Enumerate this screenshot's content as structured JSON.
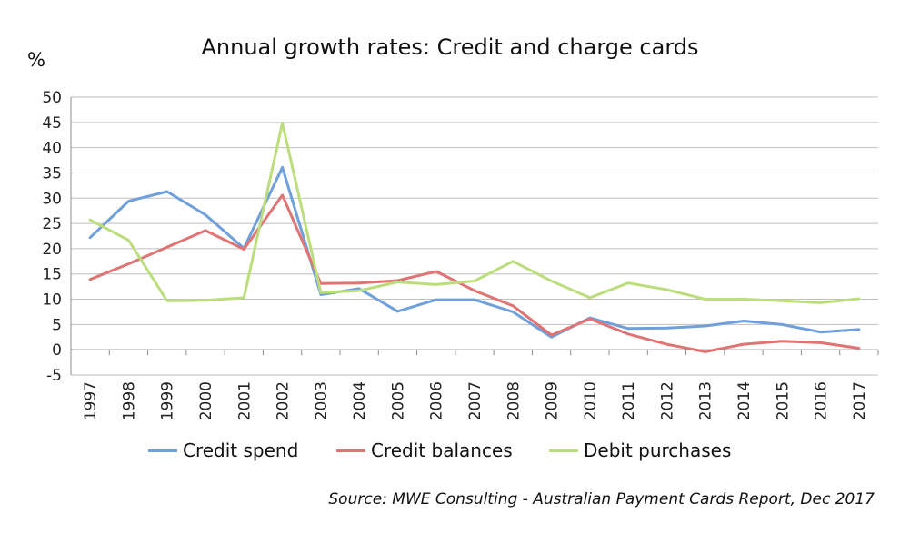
{
  "chart_data": {
    "type": "line",
    "title": "Annual growth rates: Credit and charge cards",
    "ylabel": "%",
    "xlabel": "",
    "ylim": [
      -5,
      50
    ],
    "yticks": [
      "50",
      "45",
      "40",
      "35",
      "30",
      "25",
      "20",
      "15",
      "10",
      "5",
      "0",
      "-5"
    ],
    "grid": true,
    "legend_position": "bottom",
    "categories": [
      "1997",
      "1998",
      "1999",
      "2000",
      "2001",
      "2002",
      "2003",
      "2004",
      "2005",
      "2006",
      "2007",
      "2008",
      "2009",
      "2010",
      "2011",
      "2012",
      "2013",
      "2014",
      "2015",
      "2016",
      "2017"
    ],
    "series": [
      {
        "name": "Credit spend",
        "color": "#6fa0dc",
        "values": [
          22.2,
          29.4,
          31.3,
          26.7,
          20.1,
          36.1,
          10.9,
          12.1,
          7.6,
          9.9,
          9.9,
          7.5,
          2.5,
          6.3,
          4.2,
          4.3,
          4.7,
          5.7,
          5.0,
          3.5,
          4.0
        ]
      },
      {
        "name": "Credit balances",
        "color": "#e07474",
        "values": [
          13.9,
          17.0,
          20.3,
          23.6,
          19.9,
          30.6,
          13.1,
          13.2,
          13.7,
          15.5,
          11.7,
          8.7,
          2.9,
          6.1,
          3.1,
          1.1,
          -0.4,
          1.1,
          1.7,
          1.4,
          0.3
        ]
      },
      {
        "name": "Debit purchases",
        "color": "#bcdd7c",
        "values": [
          25.7,
          21.7,
          9.7,
          9.8,
          10.3,
          44.9,
          11.3,
          11.7,
          13.4,
          12.9,
          13.6,
          17.5,
          13.6,
          10.3,
          13.2,
          11.9,
          10.0,
          10.0,
          9.7,
          9.3,
          10.1
        ]
      }
    ],
    "source": "Source: MWE Consulting - Australian Payment Cards Report, Dec 2017"
  }
}
